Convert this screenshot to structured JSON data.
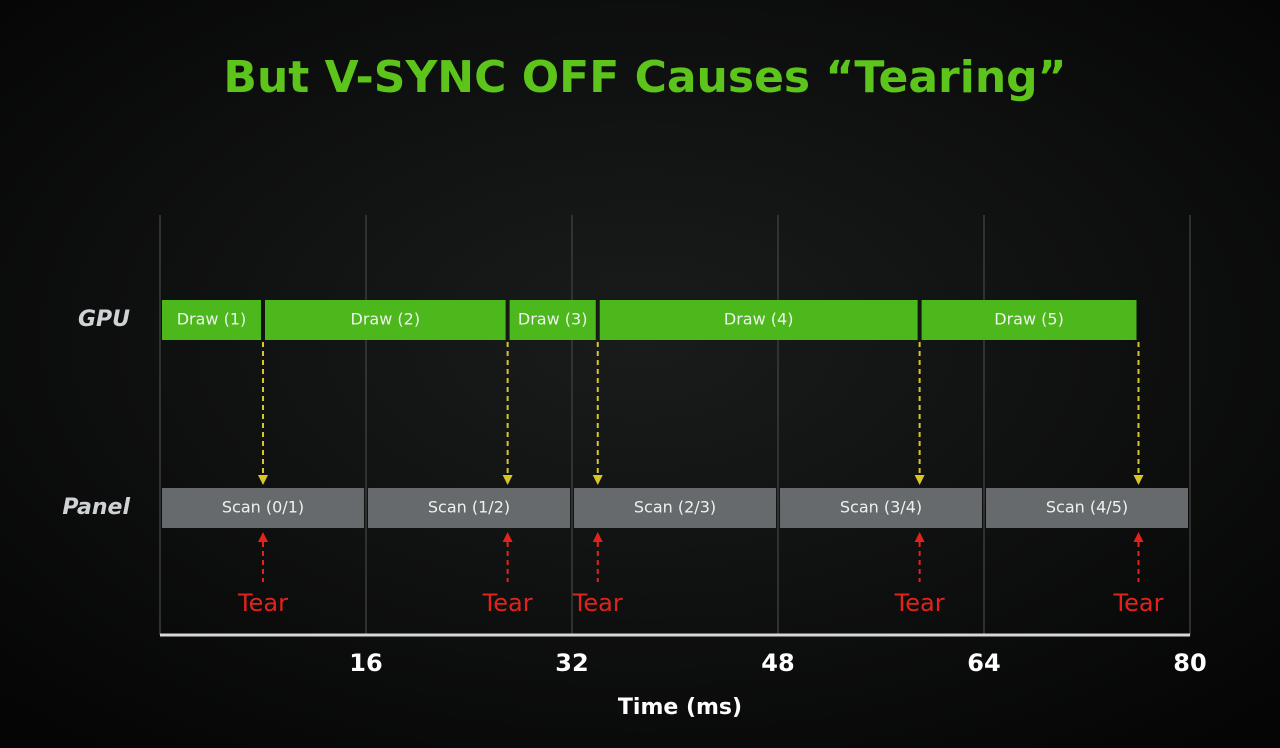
{
  "chart_data": {
    "type": "gantt",
    "title": "But V-SYNC OFF Causes “Tearing”",
    "xlabel": "Time (ms)",
    "xlim": [
      0,
      80
    ],
    "xticks": [
      16,
      32,
      48,
      64,
      80
    ],
    "grid": true,
    "rows": [
      "GPU",
      "Panel"
    ],
    "tasks": [
      {
        "label": "Draw (1)",
        "row": 0,
        "start": 0,
        "end": 8,
        "color": "#4cb81c"
      },
      {
        "label": "Draw (2)",
        "row": 0,
        "start": 8,
        "end": 27,
        "color": "#4cb81c"
      },
      {
        "label": "Draw (3)",
        "row": 0,
        "start": 27,
        "end": 34,
        "color": "#4cb81c"
      },
      {
        "label": "Draw (4)",
        "row": 0,
        "start": 34,
        "end": 59,
        "color": "#4cb81c"
      },
      {
        "label": "Draw (5)",
        "row": 0,
        "start": 59,
        "end": 76,
        "color": "#4cb81c"
      },
      {
        "label": "Scan (0/1)",
        "row": 1,
        "start": 0,
        "end": 16,
        "color": "#676a6d"
      },
      {
        "label": "Scan (1/2)",
        "row": 1,
        "start": 16,
        "end": 32,
        "color": "#676a6d"
      },
      {
        "label": "Scan (2/3)",
        "row": 1,
        "start": 32,
        "end": 48,
        "color": "#676a6d"
      },
      {
        "label": "Scan (3/4)",
        "row": 1,
        "start": 48,
        "end": 64,
        "color": "#676a6d"
      },
      {
        "label": "Scan (4/5)",
        "row": 1,
        "start": 64,
        "end": 80,
        "color": "#676a6d"
      }
    ],
    "tears": {
      "label": "Tear",
      "x": [
        8,
        27,
        34,
        59,
        76
      ],
      "color": "#e2231c"
    },
    "arrow_color": "#d8c52a",
    "title_color": "#5cc41a"
  }
}
